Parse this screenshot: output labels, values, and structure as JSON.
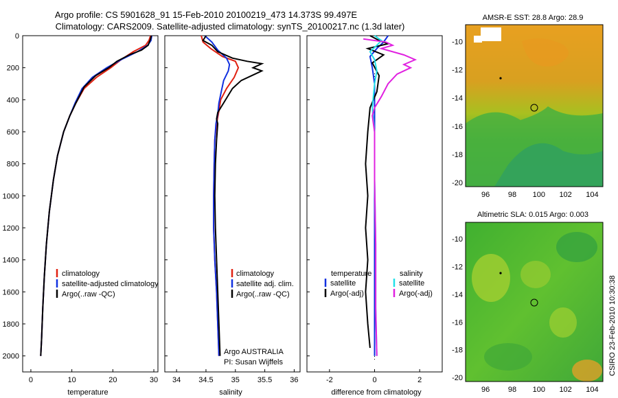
{
  "title": {
    "line1": "Argo profile: CS 5901628_91 15-Feb-2010 20100219_473 14.373S 99.497E",
    "line2": "Climatology: CARS2009. Satellite-adjusted climatology: synTS_20100217.nc (1.3d later)"
  },
  "side_label": "CSIRO 23-Feb-2010 10:30:38",
  "colors": {
    "climatology": "#e02010",
    "satellite": "#1030e0",
    "argo": "#000000",
    "sat_salt": "#20e0e8",
    "argo_salt": "#e020e0"
  },
  "chart_data": [
    {
      "type": "line",
      "name": "temperature-profile",
      "xlabel": "temperature",
      "ylabel": "",
      "xlim": [
        -2,
        31
      ],
      "ylim": [
        2100,
        0
      ],
      "x_ticks": [
        "0",
        "10",
        "20",
        "30"
      ],
      "y_ticks": [
        "0",
        "200",
        "400",
        "600",
        "800",
        "1000",
        "1200",
        "1400",
        "1600",
        "1800",
        "2000"
      ],
      "legend": [
        "climatology",
        "satellite-adjusted climatology",
        "Argo(..raw -QC)"
      ],
      "series": [
        {
          "name": "climatology",
          "color": "#e02010",
          "points": [
            [
              29.2,
              0
            ],
            [
              28.8,
              30
            ],
            [
              28,
              60
            ],
            [
              25,
              100
            ],
            [
              22,
              150
            ],
            [
              19.5,
              200
            ],
            [
              16,
              260
            ],
            [
              13,
              330
            ],
            [
              11,
              420
            ],
            [
              9.5,
              500
            ],
            [
              8,
              600
            ],
            [
              6.5,
              750
            ],
            [
              5.5,
              900
            ],
            [
              4.5,
              1100
            ],
            [
              3.8,
              1300
            ],
            [
              3.3,
              1500
            ],
            [
              2.9,
              1700
            ],
            [
              2.6,
              1900
            ],
            [
              2.4,
              2000
            ]
          ]
        },
        {
          "name": "satellite-adjusted climatology",
          "color": "#1030e0",
          "points": [
            [
              29.5,
              0
            ],
            [
              29.3,
              30
            ],
            [
              28.5,
              60
            ],
            [
              26,
              100
            ],
            [
              22,
              150
            ],
            [
              18.5,
              200
            ],
            [
              15,
              260
            ],
            [
              12.5,
              330
            ],
            [
              10.8,
              420
            ],
            [
              9.5,
              500
            ],
            [
              8,
              600
            ],
            [
              6.5,
              750
            ],
            [
              5.5,
              900
            ],
            [
              4.5,
              1100
            ],
            [
              3.8,
              1300
            ],
            [
              3.3,
              1500
            ],
            [
              2.9,
              1700
            ],
            [
              2.6,
              1900
            ],
            [
              2.4,
              2000
            ]
          ]
        },
        {
          "name": "Argo(..raw -QC)",
          "color": "#000000",
          "points": [
            [
              29.4,
              0
            ],
            [
              29.2,
              20
            ],
            [
              28.6,
              60
            ],
            [
              27,
              90
            ],
            [
              24,
              120
            ],
            [
              21,
              160
            ],
            [
              19,
              200
            ],
            [
              15.8,
              250
            ],
            [
              13,
              320
            ],
            [
              11,
              420
            ],
            [
              9.5,
              500
            ],
            [
              8,
              600
            ],
            [
              6.5,
              750
            ],
            [
              5.5,
              900
            ],
            [
              4.5,
              1100
            ],
            [
              3.8,
              1300
            ],
            [
              3.3,
              1500
            ],
            [
              2.9,
              1700
            ],
            [
              2.6,
              1900
            ],
            [
              2.4,
              2000
            ]
          ]
        }
      ]
    },
    {
      "type": "line",
      "name": "salinity-profile",
      "xlabel": "salinity",
      "xlim": [
        33.8,
        36.1
      ],
      "ylim": [
        2100,
        0
      ],
      "x_ticks": [
        "34",
        "34.5",
        "35",
        "35.5",
        "36"
      ],
      "legend": [
        "climatology",
        "satellite adj. clim.",
        "Argo(..raw -QC)"
      ],
      "annotation": [
        "Argo AUSTRALIA",
        "PI: Susan Wijffels"
      ],
      "series": [
        {
          "name": "climatology",
          "color": "#e02010",
          "points": [
            [
              34.42,
              0
            ],
            [
              34.45,
              40
            ],
            [
              34.58,
              80
            ],
            [
              34.78,
              130
            ],
            [
              35.0,
              160
            ],
            [
              35.05,
              200
            ],
            [
              34.98,
              260
            ],
            [
              34.85,
              330
            ],
            [
              34.75,
              400
            ],
            [
              34.72,
              470
            ],
            [
              34.68,
              550
            ],
            [
              34.65,
              650
            ],
            [
              34.64,
              800
            ],
            [
              34.63,
              1000
            ],
            [
              34.63,
              1200
            ],
            [
              34.65,
              1400
            ],
            [
              34.68,
              1600
            ],
            [
              34.7,
              1800
            ],
            [
              34.72,
              2000
            ]
          ]
        },
        {
          "name": "satellite adj. clim.",
          "color": "#1030e0",
          "points": [
            [
              34.48,
              0
            ],
            [
              34.6,
              40
            ],
            [
              34.7,
              90
            ],
            [
              34.85,
              140
            ],
            [
              34.9,
              180
            ],
            [
              34.88,
              220
            ],
            [
              34.8,
              280
            ],
            [
              34.76,
              350
            ],
            [
              34.72,
              420
            ],
            [
              34.7,
              490
            ],
            [
              34.67,
              550
            ],
            [
              34.65,
              650
            ],
            [
              34.64,
              800
            ],
            [
              34.63,
              1000
            ],
            [
              34.63,
              1200
            ],
            [
              34.65,
              1400
            ],
            [
              34.68,
              1600
            ],
            [
              34.7,
              1800
            ],
            [
              34.72,
              2000
            ]
          ]
        },
        {
          "name": "Argo(..raw -QC)",
          "color": "#000000",
          "points": [
            [
              34.5,
              0
            ],
            [
              34.45,
              30
            ],
            [
              34.6,
              60
            ],
            [
              34.7,
              100
            ],
            [
              34.95,
              140
            ],
            [
              35.2,
              160
            ],
            [
              35.45,
              175
            ],
            [
              35.3,
              200
            ],
            [
              35.45,
              220
            ],
            [
              35.1,
              280
            ],
            [
              34.95,
              330
            ],
            [
              34.8,
              420
            ],
            [
              34.7,
              480
            ],
            [
              34.68,
              520
            ],
            [
              34.7,
              550
            ],
            [
              34.68,
              650
            ],
            [
              34.66,
              800
            ],
            [
              34.65,
              1000
            ],
            [
              34.66,
              1200
            ],
            [
              34.68,
              1400
            ],
            [
              34.7,
              1600
            ],
            [
              34.72,
              1800
            ],
            [
              34.74,
              2000
            ]
          ]
        }
      ]
    },
    {
      "type": "line",
      "name": "difference-profile",
      "xlabel": "difference from climatology",
      "xlim": [
        -3,
        3
      ],
      "ylim": [
        2100,
        0
      ],
      "x_ticks": [
        "-2",
        "0",
        "2"
      ],
      "legend_left_title": "temperature",
      "legend_right_title": "salinity",
      "legend_left": [
        "satellite",
        "Argo(-adj)"
      ],
      "legend_right": [
        "satellite",
        "Argo(-adj)"
      ],
      "series": [
        {
          "name": "temperature satellite",
          "color": "#1030e0",
          "points": [
            [
              0.6,
              0
            ],
            [
              0.4,
              40
            ],
            [
              0.1,
              80
            ],
            [
              -0.2,
              130
            ],
            [
              -0.1,
              200
            ],
            [
              0.0,
              300
            ],
            [
              0.0,
              500
            ],
            [
              0.0,
              800
            ],
            [
              0.0,
              1200
            ],
            [
              0.0,
              1600
            ],
            [
              0.0,
              2000
            ]
          ]
        },
        {
          "name": "temperature Argo(-adj)",
          "color": "#000000",
          "points": [
            [
              -0.2,
              0
            ],
            [
              0.2,
              30
            ],
            [
              0.6,
              50
            ],
            [
              -0.3,
              80
            ],
            [
              0.4,
              120
            ],
            [
              -0.1,
              170
            ],
            [
              0.2,
              250
            ],
            [
              0.1,
              350
            ],
            [
              -0.2,
              450
            ],
            [
              -0.3,
              600
            ],
            [
              -0.4,
              800
            ],
            [
              -0.3,
              1000
            ],
            [
              -0.4,
              1200
            ],
            [
              -0.3,
              1400
            ],
            [
              -0.4,
              1600
            ],
            [
              -0.3,
              1800
            ],
            [
              -0.2,
              1950
            ]
          ]
        },
        {
          "name": "salinity satellite",
          "color": "#20e0e8",
          "points": [
            [
              0.0,
              0
            ],
            [
              0.3,
              30
            ],
            [
              0.1,
              60
            ],
            [
              -0.2,
              100
            ],
            [
              0.0,
              150
            ],
            [
              0.1,
              220
            ],
            [
              0.0,
              300
            ],
            [
              -0.1,
              450
            ],
            [
              0.0,
              600
            ],
            [
              0.0,
              900
            ],
            [
              0.05,
              1300
            ],
            [
              0.05,
              1700
            ],
            [
              0.1,
              2000
            ]
          ]
        },
        {
          "name": "salinity Argo(-adj)",
          "color": "#e020e0",
          "points": [
            [
              -0.5,
              20
            ],
            [
              0.5,
              40
            ],
            [
              0.8,
              60
            ],
            [
              0.3,
              80
            ],
            [
              1.3,
              120
            ],
            [
              1.8,
              150
            ],
            [
              1.3,
              180
            ],
            [
              1.6,
              200
            ],
            [
              1.0,
              240
            ],
            [
              0.6,
              300
            ],
            [
              0.3,
              380
            ],
            [
              0.0,
              450
            ],
            [
              -0.1,
              500
            ],
            [
              0.0,
              600
            ],
            [
              0.0,
              900
            ],
            [
              0.05,
              1300
            ],
            [
              0.05,
              1700
            ],
            [
              0.1,
              2000
            ]
          ]
        }
      ]
    },
    {
      "type": "heatmap",
      "name": "sst-map",
      "title": "AMSR-E SST: 28.8 Argo: 28.9",
      "x_ticks": [
        "96",
        "98",
        "100",
        "102",
        "104"
      ],
      "y_ticks": [
        "-10",
        "-12",
        "-14",
        "-16",
        "-18",
        "-20"
      ],
      "xlim": [
        94.5,
        104.8
      ],
      "ylim": [
        -20.3,
        -8.8
      ],
      "argo_position": [
        99.5,
        -14.4
      ]
    },
    {
      "type": "heatmap",
      "name": "sla-map",
      "title": "Altimetric SLA: 0.015 Argo: 0.003",
      "x_ticks": [
        "96",
        "98",
        "100",
        "102",
        "104"
      ],
      "y_ticks": [
        "-10",
        "-12",
        "-14",
        "-16",
        "-18",
        "-20"
      ],
      "xlim": [
        94.5,
        104.8
      ],
      "ylim": [
        -20.3,
        -8.8
      ],
      "argo_position": [
        99.5,
        -14.4
      ]
    }
  ]
}
